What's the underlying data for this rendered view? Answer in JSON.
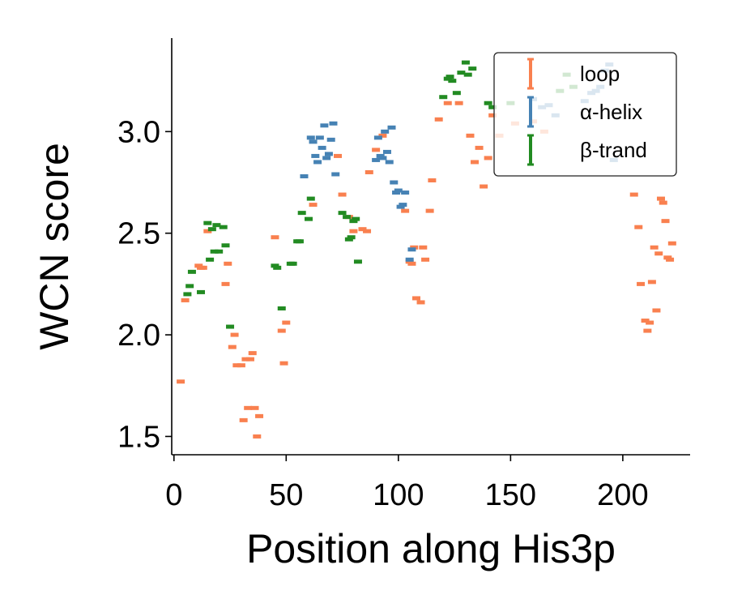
{
  "chart_data": {
    "type": "scatter",
    "xlabel": "Position along His3p",
    "ylabel": "WCN score",
    "xlim": [
      -1,
      230
    ],
    "ylim": [
      1.41,
      3.46
    ],
    "xticks": [
      0,
      50,
      100,
      150,
      200
    ],
    "yticks": [
      1.5,
      2.0,
      2.5,
      3.0
    ],
    "grid": false,
    "legend_position": "top-right",
    "series": [
      {
        "name": "loop",
        "color": "#F9804F",
        "points": [
          [
            3,
            1.77
          ],
          [
            5,
            2.17
          ],
          [
            11,
            2.34
          ],
          [
            12,
            2.33
          ],
          [
            13,
            2.33
          ],
          [
            15,
            2.51
          ],
          [
            23,
            2.25
          ],
          [
            24,
            2.35
          ],
          [
            26,
            1.94
          ],
          [
            27,
            2.0
          ],
          [
            28,
            1.85
          ],
          [
            30,
            1.85
          ],
          [
            31,
            1.58
          ],
          [
            32,
            1.88
          ],
          [
            33,
            1.64
          ],
          [
            34,
            1.88
          ],
          [
            35,
            1.91
          ],
          [
            36,
            1.64
          ],
          [
            37,
            1.5
          ],
          [
            38,
            1.6
          ],
          [
            45,
            2.48
          ],
          [
            48,
            2.02
          ],
          [
            49,
            1.86
          ],
          [
            50,
            2.06
          ],
          [
            62,
            2.64
          ],
          [
            73,
            2.88
          ],
          [
            75,
            2.69
          ],
          [
            78,
            2.58
          ],
          [
            80,
            2.51
          ],
          [
            84,
            2.52
          ],
          [
            86,
            2.51
          ],
          [
            87,
            2.8
          ],
          [
            90,
            2.91
          ],
          [
            93,
            2.98
          ],
          [
            103,
            2.61
          ],
          [
            105,
            2.36
          ],
          [
            106,
            2.35
          ],
          [
            107,
            2.43
          ],
          [
            108,
            2.18
          ],
          [
            110,
            2.16
          ],
          [
            111,
            2.43
          ],
          [
            112,
            2.37
          ],
          [
            114,
            2.61
          ],
          [
            115,
            2.76
          ],
          [
            118,
            3.06
          ],
          [
            122,
            3.14
          ],
          [
            127,
            3.14
          ],
          [
            132,
            2.98
          ],
          [
            134,
            2.85
          ],
          [
            136,
            2.92
          ],
          [
            138,
            2.73
          ],
          [
            140,
            2.87
          ],
          [
            142,
            3.08
          ],
          [
            145,
            2.98
          ],
          [
            152,
            3.04
          ],
          [
            160,
            3.05
          ],
          [
            165,
            3.0
          ],
          [
            205,
            2.69
          ],
          [
            207,
            2.53
          ],
          [
            208,
            2.25
          ],
          [
            210,
            2.07
          ],
          [
            211,
            2.02
          ],
          [
            212,
            2.06
          ],
          [
            213,
            2.26
          ],
          [
            214,
            2.43
          ],
          [
            215,
            2.12
          ],
          [
            216,
            2.4
          ],
          [
            217,
            2.67
          ],
          [
            218,
            2.65
          ],
          [
            219,
            2.56
          ],
          [
            220,
            2.38
          ],
          [
            221,
            2.37
          ],
          [
            222,
            2.45
          ]
        ]
      },
      {
        "name": "α-helix",
        "color": "#4682B4",
        "points": [
          [
            58,
            2.78
          ],
          [
            61,
            2.97
          ],
          [
            62,
            2.95
          ],
          [
            63,
            2.88
          ],
          [
            64,
            2.85
          ],
          [
            65,
            2.97
          ],
          [
            66,
            2.92
          ],
          [
            67,
            3.03
          ],
          [
            68,
            2.87
          ],
          [
            69,
            2.89
          ],
          [
            70,
            2.96
          ],
          [
            71,
            3.04
          ],
          [
            72,
            2.79
          ],
          [
            90,
            2.86
          ],
          [
            91,
            2.97
          ],
          [
            92,
            2.88
          ],
          [
            93,
            2.87
          ],
          [
            94,
            3.0
          ],
          [
            95,
            2.9
          ],
          [
            96,
            2.85
          ],
          [
            97,
            3.02
          ],
          [
            98,
            2.75
          ],
          [
            99,
            2.7
          ],
          [
            100,
            2.71
          ],
          [
            101,
            2.63
          ],
          [
            102,
            2.64
          ],
          [
            103,
            2.7
          ],
          [
            105,
            2.37
          ],
          [
            106,
            2.42
          ],
          [
            160,
            3.16
          ],
          [
            164,
            3.12
          ],
          [
            167,
            3.13
          ],
          [
            170,
            3.08
          ],
          [
            183,
            3.15
          ],
          [
            186,
            3.19
          ],
          [
            188,
            3.2
          ],
          [
            190,
            3.22
          ],
          [
            192,
            3.3
          ],
          [
            194,
            3.33
          ],
          [
            196,
            2.86
          ]
        ]
      },
      {
        "name": "β-trand",
        "color": "#228B22",
        "points": [
          [
            6,
            2.2
          ],
          [
            7,
            2.24
          ],
          [
            8,
            2.31
          ],
          [
            12,
            2.21
          ],
          [
            15,
            2.55
          ],
          [
            16,
            2.37
          ],
          [
            17,
            2.52
          ],
          [
            18,
            2.41
          ],
          [
            19,
            2.54
          ],
          [
            20,
            2.41
          ],
          [
            22,
            2.53
          ],
          [
            23,
            2.44
          ],
          [
            25,
            2.04
          ],
          [
            45,
            2.34
          ],
          [
            46,
            2.33
          ],
          [
            48,
            2.13
          ],
          [
            52,
            2.35
          ],
          [
            53,
            2.35
          ],
          [
            55,
            2.46
          ],
          [
            56,
            2.46
          ],
          [
            57,
            2.6
          ],
          [
            60,
            2.57
          ],
          [
            61,
            2.67
          ],
          [
            75,
            2.6
          ],
          [
            77,
            2.58
          ],
          [
            78,
            2.47
          ],
          [
            79,
            2.48
          ],
          [
            80,
            2.56
          ],
          [
            81,
            2.57
          ],
          [
            82,
            2.36
          ],
          [
            120,
            3.17
          ],
          [
            122,
            3.26
          ],
          [
            123,
            3.27
          ],
          [
            124,
            3.25
          ],
          [
            126,
            3.19
          ],
          [
            128,
            3.29
          ],
          [
            130,
            3.34
          ],
          [
            131,
            3.28
          ],
          [
            133,
            3.31
          ],
          [
            140,
            3.14
          ],
          [
            142,
            3.12
          ],
          [
            150,
            3.14
          ],
          [
            172,
            3.2
          ],
          [
            175,
            3.28
          ],
          [
            178,
            3.22
          ]
        ]
      }
    ]
  }
}
